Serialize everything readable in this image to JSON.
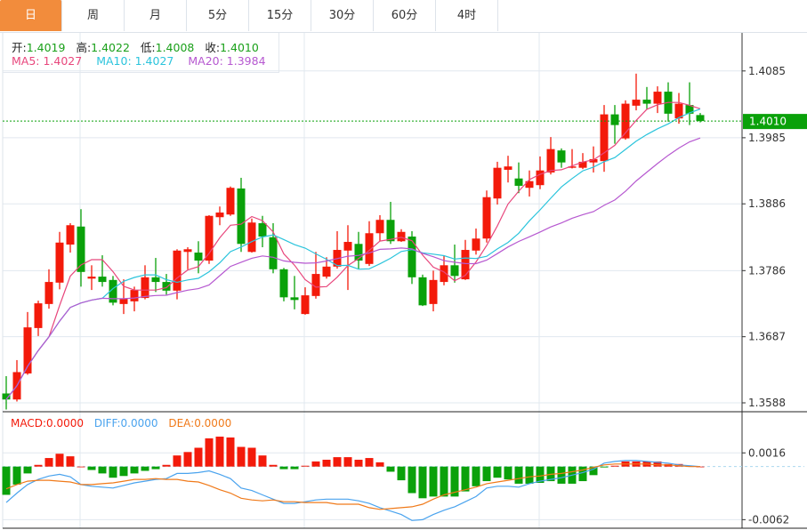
{
  "tabs": [
    {
      "label": "日",
      "active": true
    },
    {
      "label": "周"
    },
    {
      "label": "月"
    },
    {
      "label": "5分"
    },
    {
      "label": "15分"
    },
    {
      "label": "30分"
    },
    {
      "label": "60分"
    },
    {
      "label": "4时"
    }
  ],
  "legend": {
    "open_label": "开:",
    "open": "1.4019",
    "high_label": "高:",
    "high": "1.4022",
    "low_label": "低:",
    "low": "1.4008",
    "close_label": "收:",
    "close": "1.4010",
    "ma5": "MA5: 1.4027",
    "ma10": "MA10: 1.4027",
    "ma20": "MA20: 1.3984"
  },
  "macd_legend": {
    "macd": "MACD:0.0000",
    "diff": "DIFF:0.0000",
    "dea": "DEA:0.0000"
  },
  "colors": {
    "up": "#f31a0a",
    "down": "#0aa10a",
    "ma5": "#e8467c",
    "ma10": "#2bc4dc",
    "ma20": "#b658d0",
    "diff": "#4aa3ee",
    "dea": "#f07a1a",
    "accent": "#f28c3c",
    "last_price": "#0aa10a"
  },
  "chart_data": [
    {
      "type": "candlestick",
      "ylim": [
        1.3576,
        1.4142
      ],
      "yticks": [
        "1.4085",
        "1.3985",
        "1.3886",
        "1.3786",
        "1.3687",
        "1.3588"
      ],
      "last_price": "1.4010",
      "grid": true,
      "ma_periods": [
        5,
        10,
        20
      ],
      "ohlc": [
        [
          1.3602,
          1.3628,
          1.3578,
          1.3593
        ],
        [
          1.3593,
          1.3652,
          1.359,
          1.3634
        ],
        [
          1.3632,
          1.3724,
          1.363,
          1.3701
        ],
        [
          1.37,
          1.3741,
          1.3688,
          1.3737
        ],
        [
          1.3736,
          1.3788,
          1.3729,
          1.3769
        ],
        [
          1.3768,
          1.3844,
          1.3758,
          1.3828
        ],
        [
          1.3825,
          1.3857,
          1.3813,
          1.3854
        ],
        [
          1.3852,
          1.3878,
          1.3762,
          1.3784
        ],
        [
          1.3774,
          1.3794,
          1.3757,
          1.3777
        ],
        [
          1.3777,
          1.3809,
          1.3762,
          1.3769
        ],
        [
          1.3772,
          1.3778,
          1.3734,
          1.3738
        ],
        [
          1.3736,
          1.3773,
          1.3721,
          1.3744
        ],
        [
          1.374,
          1.3762,
          1.3725,
          1.3757
        ],
        [
          1.3745,
          1.3794,
          1.3743,
          1.3776
        ],
        [
          1.3776,
          1.3805,
          1.3754,
          1.3769
        ],
        [
          1.3769,
          1.3781,
          1.375,
          1.3756
        ],
        [
          1.3756,
          1.3818,
          1.3743,
          1.3816
        ],
        [
          1.3814,
          1.3821,
          1.3788,
          1.3818
        ],
        [
          1.3813,
          1.383,
          1.3782,
          1.3801
        ],
        [
          1.3801,
          1.3869,
          1.3796,
          1.3868
        ],
        [
          1.3866,
          1.3882,
          1.3854,
          1.3873
        ],
        [
          1.387,
          1.3912,
          1.3868,
          1.391
        ],
        [
          1.3909,
          1.3925,
          1.3814,
          1.3826
        ],
        [
          1.3814,
          1.3864,
          1.3813,
          1.3858
        ],
        [
          1.3857,
          1.3868,
          1.3821,
          1.3837
        ],
        [
          1.3836,
          1.3857,
          1.3782,
          1.3788
        ],
        [
          1.3788,
          1.379,
          1.374,
          1.3746
        ],
        [
          1.3746,
          1.3778,
          1.3728,
          1.3742
        ],
        [
          1.3721,
          1.3761,
          1.372,
          1.3749
        ],
        [
          1.3748,
          1.3814,
          1.3744,
          1.3781
        ],
        [
          1.3777,
          1.3806,
          1.3774,
          1.3792
        ],
        [
          1.3792,
          1.3845,
          1.3789,
          1.3817
        ],
        [
          1.3816,
          1.3854,
          1.3757,
          1.3829
        ],
        [
          1.3826,
          1.3844,
          1.3788,
          1.3801
        ],
        [
          1.3796,
          1.386,
          1.3793,
          1.3842
        ],
        [
          1.3842,
          1.3869,
          1.383,
          1.3862
        ],
        [
          1.3862,
          1.3889,
          1.3826,
          1.383
        ],
        [
          1.383,
          1.3848,
          1.3829,
          1.3844
        ],
        [
          1.3837,
          1.3845,
          1.3766,
          1.3776
        ],
        [
          1.3776,
          1.378,
          1.3733,
          1.3734
        ],
        [
          1.3736,
          1.3786,
          1.3725,
          1.3772
        ],
        [
          1.3769,
          1.3809,
          1.3764,
          1.3794
        ],
        [
          1.3794,
          1.3825,
          1.3768,
          1.3778
        ],
        [
          1.3773,
          1.3832,
          1.3772,
          1.3817
        ],
        [
          1.3816,
          1.3849,
          1.381,
          1.3834
        ],
        [
          1.3834,
          1.3906,
          1.3828,
          1.3896
        ],
        [
          1.3894,
          1.3949,
          1.3885,
          1.394
        ],
        [
          1.3937,
          1.3958,
          1.3918,
          1.3942
        ],
        [
          1.3924,
          1.3948,
          1.3902,
          1.3913
        ],
        [
          1.391,
          1.3936,
          1.3897,
          1.392
        ],
        [
          1.3914,
          1.3957,
          1.3908,
          1.3936
        ],
        [
          1.3933,
          1.3986,
          1.393,
          1.3968
        ],
        [
          1.3966,
          1.3969,
          1.394,
          1.3948
        ],
        [
          1.394,
          1.3968,
          1.3939,
          1.3942
        ],
        [
          1.394,
          1.3962,
          1.3938,
          1.3949
        ],
        [
          1.3948,
          1.3972,
          1.3933,
          1.3953
        ],
        [
          1.395,
          1.4034,
          1.3934,
          1.402
        ],
        [
          1.402,
          1.4034,
          1.3976,
          1.4004
        ],
        [
          1.3984,
          1.4041,
          1.3982,
          1.4036
        ],
        [
          1.4033,
          1.4081,
          1.4026,
          1.4042
        ],
        [
          1.4042,
          1.4061,
          1.4028,
          1.4036
        ],
        [
          1.4036,
          1.4062,
          1.4022,
          1.4054
        ],
        [
          1.4054,
          1.4068,
          1.4009,
          1.4021
        ],
        [
          1.4014,
          1.4052,
          1.4006,
          1.4036
        ],
        [
          1.4034,
          1.4068,
          1.4004,
          1.4021
        ],
        [
          1.4019,
          1.4022,
          1.4008,
          1.401
        ]
      ]
    },
    {
      "type": "macd",
      "ylim": [
        -0.0072,
        0.0062
      ],
      "yticks": [
        "0.0016",
        "-0.0062"
      ],
      "macd": [
        -0.0033,
        -0.0021,
        -0.0008,
        0.0002,
        0.001,
        0.0015,
        0.0012,
        0.0,
        -0.0004,
        -0.0008,
        -0.0013,
        -0.0011,
        -0.0008,
        -0.0005,
        -0.0003,
        0.0002,
        0.0013,
        0.0017,
        0.0022,
        0.0033,
        0.0035,
        0.0034,
        0.0023,
        0.0022,
        0.0013,
        0.0002,
        -0.0003,
        -0.0003,
        0.0001,
        0.0006,
        0.0008,
        0.0011,
        0.0011,
        0.0008,
        0.001,
        0.0005,
        -0.0006,
        -0.0016,
        -0.0031,
        -0.0037,
        -0.0035,
        -0.0035,
        -0.0035,
        -0.0029,
        -0.0023,
        -0.0017,
        -0.0013,
        -0.0015,
        -0.002,
        -0.002,
        -0.0019,
        -0.0017,
        -0.002,
        -0.002,
        -0.0017,
        -0.001,
        -0.0001,
        0.0001,
        0.0006,
        0.0006,
        0.0006,
        0.0006,
        0.0003,
        0.0003,
        0.0001,
        0.0
      ],
      "diff": [
        -0.0042,
        -0.0031,
        -0.0021,
        -0.0015,
        -0.0011,
        -0.0009,
        -0.0012,
        -0.0021,
        -0.0023,
        -0.0024,
        -0.0025,
        -0.0022,
        -0.0019,
        -0.0017,
        -0.0015,
        -0.0014,
        -0.0008,
        -0.0008,
        -0.0007,
        -0.0005,
        -0.0009,
        -0.0014,
        -0.0025,
        -0.0028,
        -0.0033,
        -0.0038,
        -0.0043,
        -0.0043,
        -0.0041,
        -0.0039,
        -0.0038,
        -0.0038,
        -0.0038,
        -0.004,
        -0.0043,
        -0.0048,
        -0.0052,
        -0.0056,
        -0.0063,
        -0.0062,
        -0.0056,
        -0.0051,
        -0.0047,
        -0.0041,
        -0.0035,
        -0.0025,
        -0.0023,
        -0.0023,
        -0.0024,
        -0.002,
        -0.0017,
        -0.0015,
        -0.0013,
        -0.001,
        -0.0007,
        -0.0003,
        0.0004,
        0.0006,
        0.0007,
        0.0007,
        0.0006,
        0.0005,
        0.0004,
        0.0002,
        0.0001,
        0.0
      ],
      "dea": [
        -0.0026,
        -0.0021,
        -0.0017,
        -0.0016,
        -0.0016,
        -0.0017,
        -0.0018,
        -0.0021,
        -0.0021,
        -0.002,
        -0.0019,
        -0.0017,
        -0.0015,
        -0.0015,
        -0.0014,
        -0.0015,
        -0.0015,
        -0.0017,
        -0.0018,
        -0.0022,
        -0.0027,
        -0.0031,
        -0.0037,
        -0.0039,
        -0.004,
        -0.0039,
        -0.0041,
        -0.0041,
        -0.0042,
        -0.0042,
        -0.0042,
        -0.0044,
        -0.0044,
        -0.0044,
        -0.0048,
        -0.005,
        -0.0049,
        -0.0048,
        -0.0047,
        -0.0044,
        -0.0038,
        -0.0033,
        -0.003,
        -0.0027,
        -0.0024,
        -0.002,
        -0.0018,
        -0.0016,
        -0.0014,
        -0.0012,
        -0.0011,
        -0.0009,
        -0.0008,
        -0.0006,
        -0.0004,
        -0.0001,
        0.0002,
        0.0003,
        0.0003,
        0.0003,
        0.0003,
        0.0002,
        0.0002,
        0.0001,
        0.0,
        0.0
      ]
    }
  ]
}
